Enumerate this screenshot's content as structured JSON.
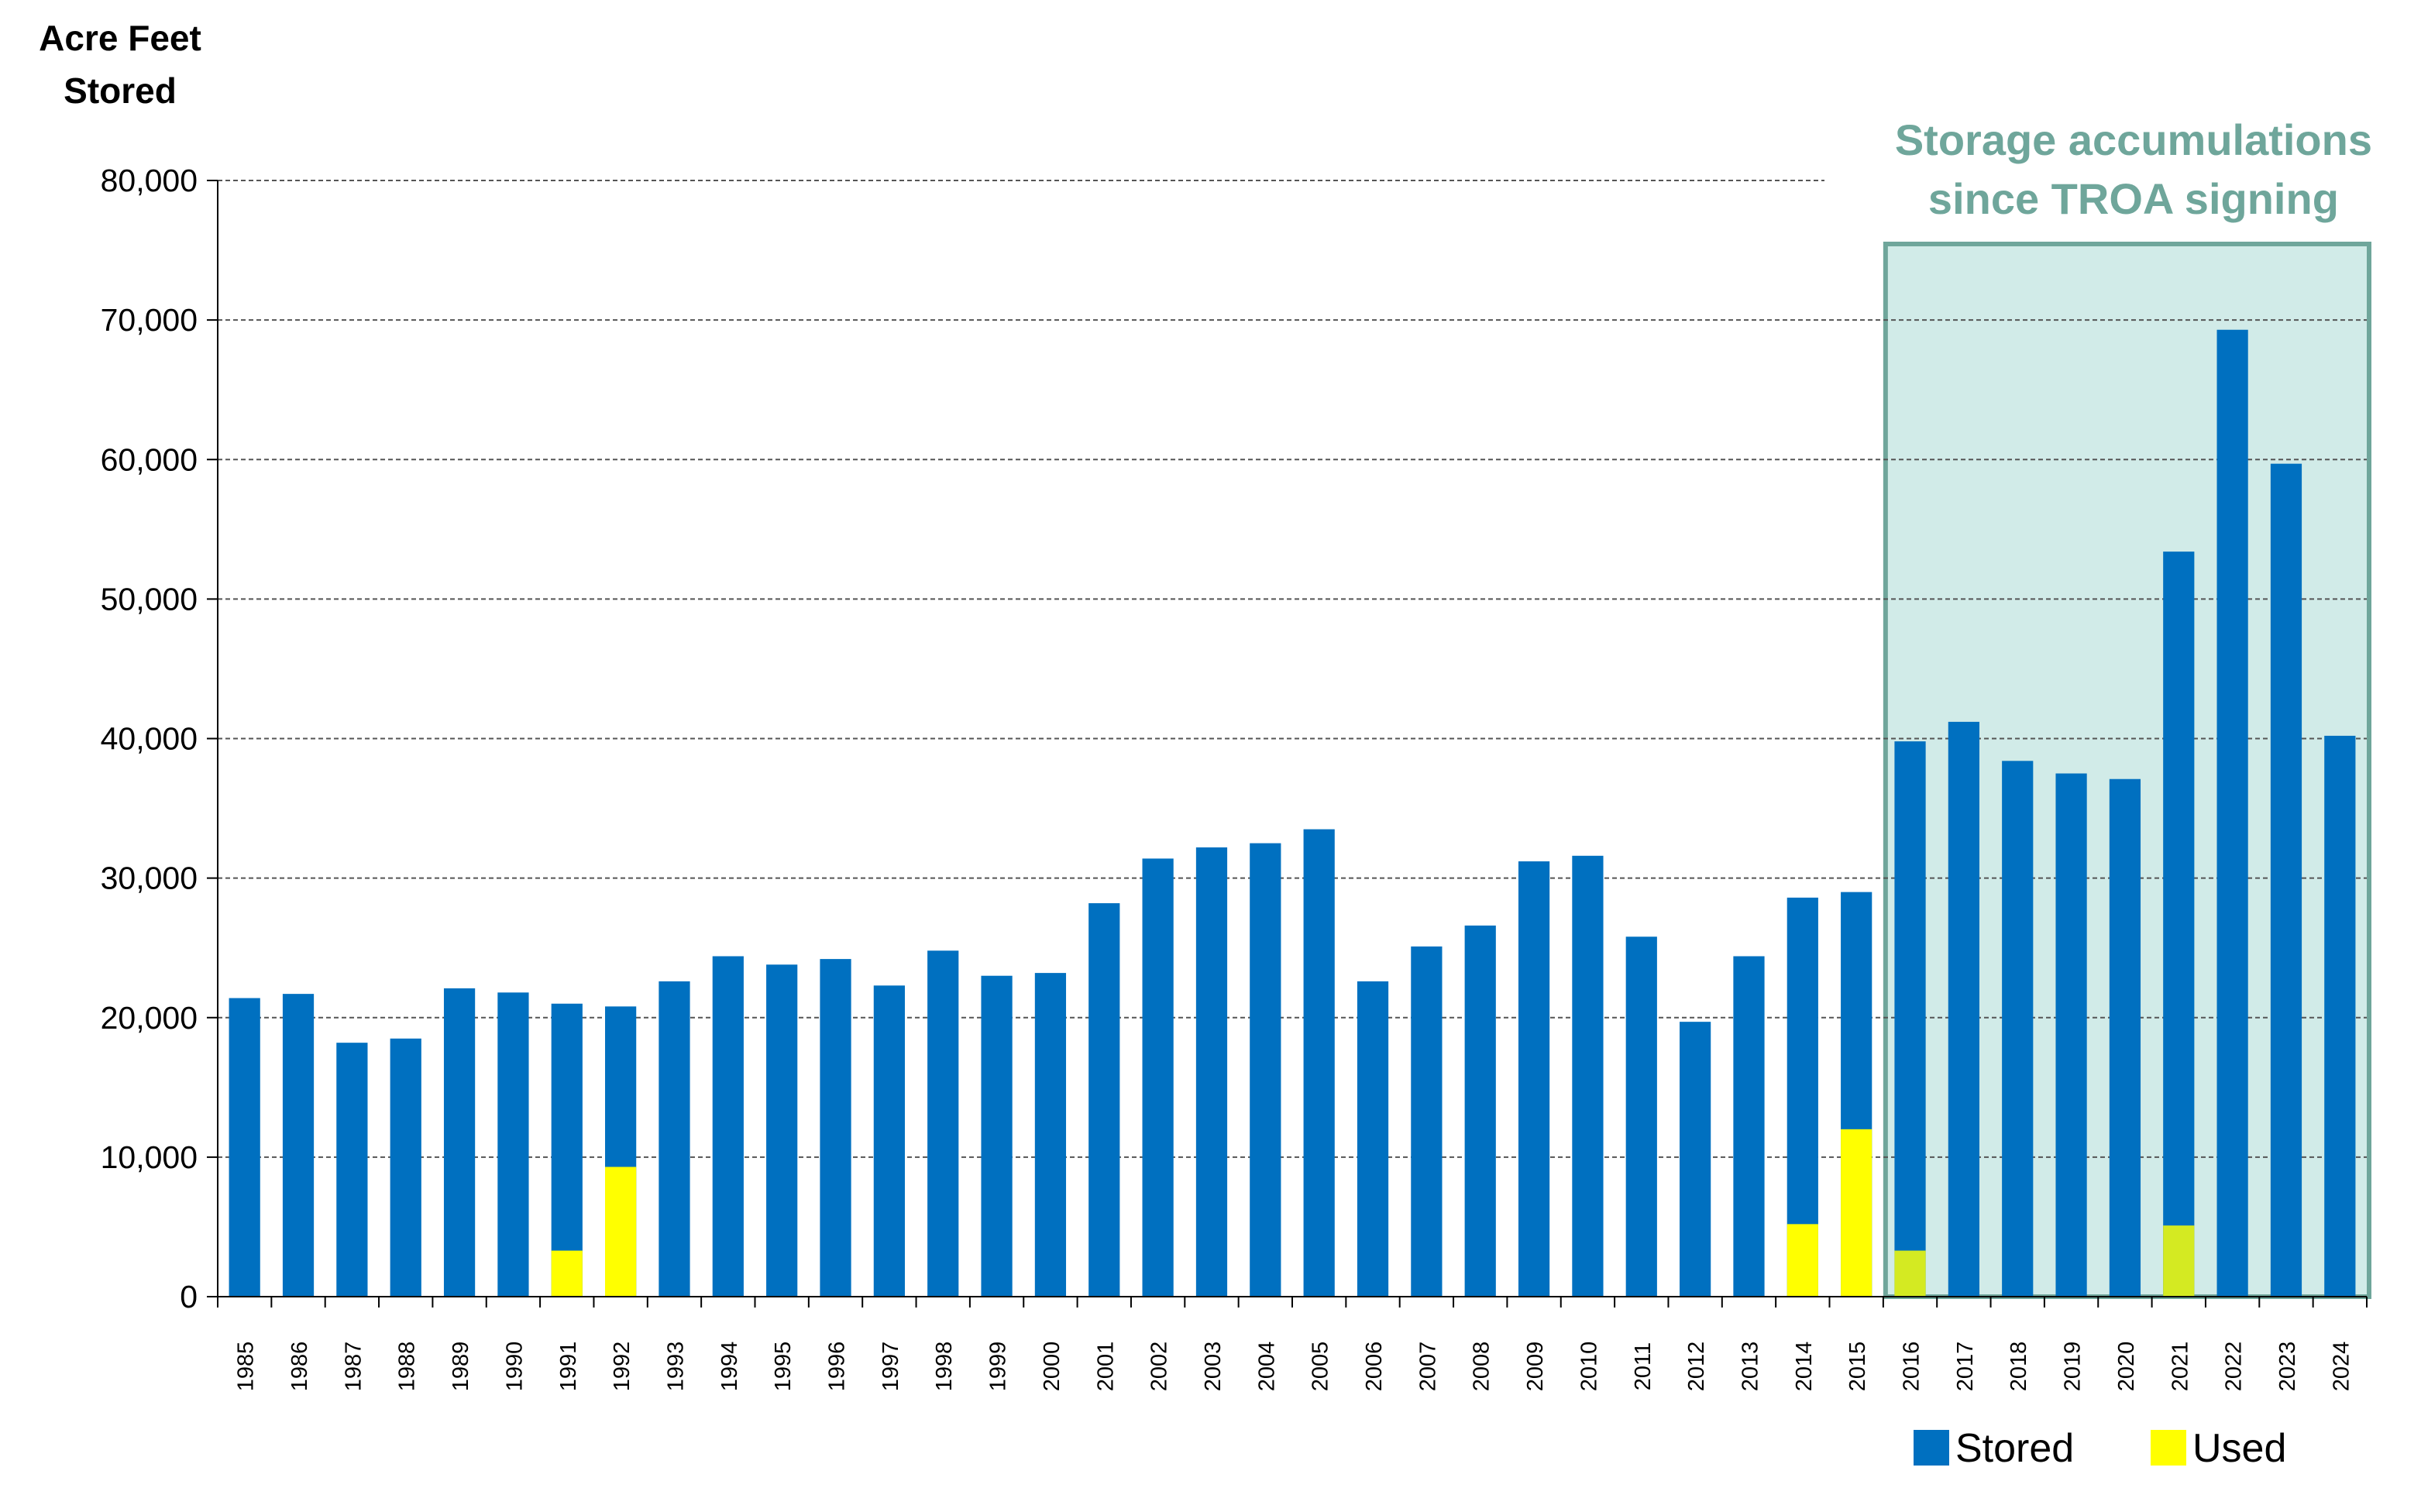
{
  "chart_data": {
    "type": "bar",
    "ylabel": "Acre Feet Stored",
    "ylabel_lines": [
      "Acre Feet",
      "Stored"
    ],
    "ylim": [
      0,
      80000
    ],
    "yticks": [
      "0",
      "10,000",
      "20,000",
      "30,000",
      "40,000",
      "50,000",
      "60,000",
      "70,000",
      "80,000"
    ],
    "ytick_values": [
      0,
      10000,
      20000,
      30000,
      40000,
      50000,
      60000,
      70000,
      80000
    ],
    "grid": true,
    "categories": [
      "1985",
      "1986",
      "1987",
      "1988",
      "1989",
      "1990",
      "1991",
      "1992",
      "1993",
      "1994",
      "1995",
      "1996",
      "1997",
      "1998",
      "1999",
      "2000",
      "2001",
      "2002",
      "2003",
      "2004",
      "2005",
      "2006",
      "2007",
      "2008",
      "2009",
      "2010",
      "2011",
      "2012",
      "2013",
      "2014",
      "2015",
      "2016",
      "2017",
      "2018",
      "2019",
      "2020",
      "2021",
      "2022",
      "2023",
      "2024"
    ],
    "series": [
      {
        "name": "Stored",
        "color": "#0070c0",
        "values": [
          21400,
          21700,
          18200,
          18500,
          22100,
          21800,
          21000,
          20800,
          22600,
          24400,
          23800,
          24200,
          22300,
          24800,
          23000,
          23200,
          28200,
          31400,
          32200,
          32500,
          33500,
          22600,
          25100,
          26600,
          31200,
          31600,
          25800,
          19700,
          24400,
          28600,
          29000,
          39800,
          41200,
          38400,
          37500,
          37100,
          53400,
          69300,
          59700,
          40200
        ]
      },
      {
        "name": "Used",
        "color": "#ffff00",
        "values": [
          0,
          0,
          0,
          0,
          0,
          0,
          3300,
          9300,
          0,
          0,
          0,
          0,
          0,
          0,
          0,
          0,
          0,
          0,
          0,
          0,
          0,
          0,
          0,
          0,
          0,
          0,
          0,
          0,
          0,
          5200,
          12000,
          3300,
          0,
          0,
          0,
          0,
          5100,
          0,
          0,
          0
        ]
      }
    ],
    "legend": "bottom-right",
    "annotation": {
      "lines": [
        "Storage accumulations",
        "since TROA signing"
      ],
      "start_category": "2016",
      "end_category": "2024",
      "color": "#6fa69b",
      "fill": "#d1ebe8"
    }
  }
}
